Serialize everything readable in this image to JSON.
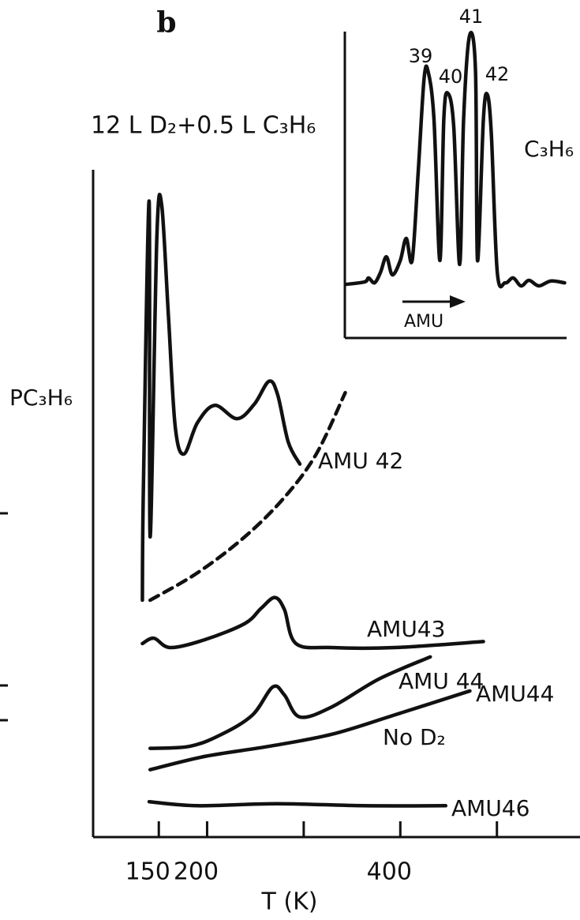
{
  "chart_data": [
    {
      "type": "line",
      "panel_label": "b",
      "title": "12 L D₂+0.5 L C₃H₆",
      "y_label": "PC₃H₆",
      "x_label": "T (K)",
      "xlim": [
        82,
        586
      ],
      "xticks": [
        150,
        200,
        400
      ],
      "minor_xticks": [
        300,
        500
      ],
      "ylim": [
        0,
        100
      ],
      "series": [
        {
          "name": "AMU 42",
          "color": "#111111",
          "x": [
            133,
            134,
            140,
            141,
            148,
            153,
            160,
            167,
            176,
            190,
            208,
            231,
            249,
            264,
            273,
            284,
            296
          ],
          "values": [
            35.5,
            52,
            95.3,
            45,
            90,
            94.7,
            78,
            61.5,
            57.4,
            62.1,
            64.7,
            62.7,
            64.9,
            68.3,
            66.3,
            59.2,
            55.9
          ]
        },
        {
          "color": "#111111",
          "style": "dashed",
          "x": [
            141,
            190,
            239,
            280,
            313,
            343
          ],
          "values": [
            35.5,
            39.6,
            45,
            50.9,
            57.4,
            66.6
          ]
        },
        {
          "name": "AMU43",
          "color": "#111111",
          "x": [
            133,
            145,
            162,
            198,
            239,
            256,
            270,
            280,
            292,
            329,
            394,
            486
          ],
          "values": [
            29,
            29.8,
            28.4,
            29.6,
            32,
            34.3,
            35.9,
            34.1,
            29,
            28.4,
            28.4,
            29.3
          ]
        },
        {
          "name": "AMU 44",
          "color": "#111111",
          "x": [
            141,
            182,
            215,
            247,
            268,
            280,
            296,
            329,
            378,
            431
          ],
          "values": [
            13.3,
            13.6,
            15.4,
            18.3,
            22.5,
            21.3,
            18,
            19.5,
            23.7,
            27
          ]
        },
        {
          "name": "AMU44",
          "annotation": "No D₂",
          "color": "#111111",
          "x": [
            141,
            198,
            264,
            329,
            394,
            472
          ],
          "values": [
            10.1,
            12.1,
            13.6,
            15.4,
            18.3,
            21.9
          ]
        },
        {
          "name": "AMU46",
          "color": "#111111",
          "x": [
            140,
            190,
            272,
            362,
            447
          ],
          "values": [
            5.3,
            4.7,
            5,
            4.7,
            4.7
          ]
        }
      ]
    },
    {
      "type": "line",
      "label": "C₃H₆",
      "x_label": "AMU",
      "xlim": [
        34.8,
        46
      ],
      "ylim": [
        0,
        100
      ],
      "peaks": [
        39,
        40,
        41,
        42
      ],
      "series": [
        {
          "color": "#111111",
          "x": [
            34.84,
            35.8,
            36.0,
            36.3,
            36.6,
            36.9,
            37.2,
            37.6,
            37.9,
            38.2,
            38.5,
            38.8,
            39.0,
            39.3,
            39.6,
            39.8,
            40.0,
            40.3,
            40.6,
            40.8,
            41.1,
            41.4,
            41.5,
            41.8,
            42.0,
            42.2,
            42.5,
            42.9,
            43.3,
            43.7,
            44.1,
            44.6,
            45.2,
            45.9
          ],
          "values": [
            17.5,
            18.3,
            19.6,
            18,
            21.4,
            26.5,
            20.6,
            25.3,
            32.5,
            25.3,
            53.6,
            84.5,
            87.1,
            71.6,
            25.3,
            71.6,
            79.9,
            69,
            24,
            71.6,
            98.7,
            87.1,
            25.3,
            71.6,
            79.4,
            66.5,
            21.4,
            18,
            19.6,
            17,
            18.8,
            17,
            18.6,
            18
          ]
        }
      ]
    }
  ]
}
